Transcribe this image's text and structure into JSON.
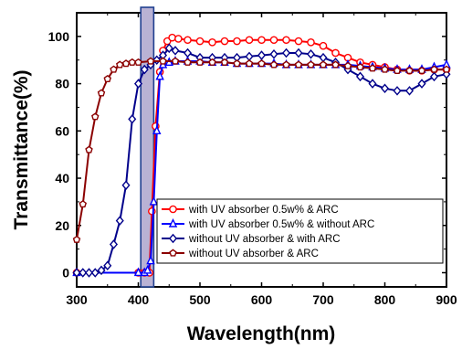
{
  "chart_data": {
    "type": "line",
    "title": "",
    "xlabel": "Wavelength(nm)",
    "ylabel": "Transmittance(%)",
    "xlim": [
      300,
      900
    ],
    "ylim": [
      -6,
      110
    ],
    "xticks": [
      300,
      400,
      500,
      600,
      700,
      800,
      900
    ],
    "yticks": [
      0,
      20,
      40,
      60,
      80,
      100
    ],
    "grid": false,
    "legend_position": "bottom-right",
    "highlight_band": {
      "x0": 404,
      "x1": 425,
      "color": "#b9b2d4",
      "edge_color": "#1f3f8f"
    },
    "series": [
      {
        "name": "with UV absorber 0.5w% & ARC",
        "color": "#ff0000",
        "marker": "circle",
        "x": [
          300,
          400,
          410,
          418,
          422,
          428,
          435,
          440,
          447,
          455,
          465,
          480,
          500,
          520,
          540,
          560,
          580,
          600,
          620,
          640,
          660,
          680,
          700,
          720,
          740,
          760,
          780,
          800,
          820,
          840,
          860,
          880,
          900
        ],
        "y": [
          0,
          0,
          0,
          0,
          26,
          62,
          85,
          94,
          98,
          99.5,
          99,
          98.5,
          98,
          97.5,
          98,
          98,
          98.5,
          98.5,
          98.5,
          98.5,
          98,
          97.5,
          96,
          93,
          91,
          89,
          88,
          87,
          86,
          85.5,
          85.5,
          86,
          86
        ]
      },
      {
        "name": "with UV absorber 0.5w% & without ARC",
        "color": "#0000ff",
        "marker": "triangle",
        "x": [
          300,
          400,
          410,
          415,
          420,
          425,
          430,
          435,
          440,
          450,
          460,
          480,
          500,
          520,
          540,
          560,
          580,
          600,
          620,
          640,
          660,
          680,
          700,
          720,
          740,
          760,
          780,
          800,
          820,
          840,
          860,
          880,
          900
        ],
        "y": [
          0,
          0,
          0,
          1,
          5,
          30,
          60,
          83,
          88,
          89,
          89.5,
          89.5,
          89.5,
          89,
          89,
          88.5,
          88.5,
          88.5,
          88.5,
          88,
          88,
          88,
          88,
          88,
          88,
          87.5,
          87,
          86.5,
          86,
          86,
          86,
          87,
          88
        ]
      },
      {
        "name": "without UV absorber & with ARC",
        "color": "#00008b",
        "marker": "diamond",
        "x": [
          300,
          310,
          320,
          330,
          340,
          350,
          360,
          370,
          380,
          390,
          400,
          410,
          420,
          430,
          440,
          450,
          460,
          480,
          500,
          520,
          540,
          560,
          580,
          600,
          620,
          640,
          660,
          680,
          700,
          720,
          740,
          760,
          780,
          800,
          820,
          840,
          860,
          880,
          900
        ],
        "y": [
          0,
          0,
          0,
          0,
          1,
          3,
          12,
          22,
          37,
          65,
          80,
          86,
          88,
          90,
          92,
          95,
          94,
          93,
          91,
          91,
          91,
          91,
          91.5,
          92,
          92.5,
          93,
          93,
          92.5,
          91,
          89,
          86,
          83,
          80,
          78,
          77,
          77,
          80,
          83,
          84
        ]
      },
      {
        "name": "without UV absorber & ARC",
        "color": "#8b0000",
        "marker": "pentagon",
        "x": [
          300,
          310,
          320,
          330,
          340,
          350,
          360,
          370,
          380,
          390,
          400,
          420,
          440,
          460,
          480,
          500,
          520,
          540,
          560,
          580,
          600,
          620,
          640,
          660,
          680,
          700,
          720,
          740,
          760,
          780,
          800,
          820,
          840,
          860,
          880,
          900
        ],
        "y": [
          14,
          29,
          52,
          66,
          76,
          82,
          86,
          88,
          88.5,
          89,
          89,
          89.5,
          89.5,
          89.5,
          89,
          89,
          89,
          89,
          88.5,
          88.5,
          88.5,
          88,
          88,
          88,
          88,
          88,
          88,
          87.5,
          87,
          86.5,
          86,
          85.5,
          85.5,
          85.5,
          86,
          86
        ]
      }
    ]
  }
}
